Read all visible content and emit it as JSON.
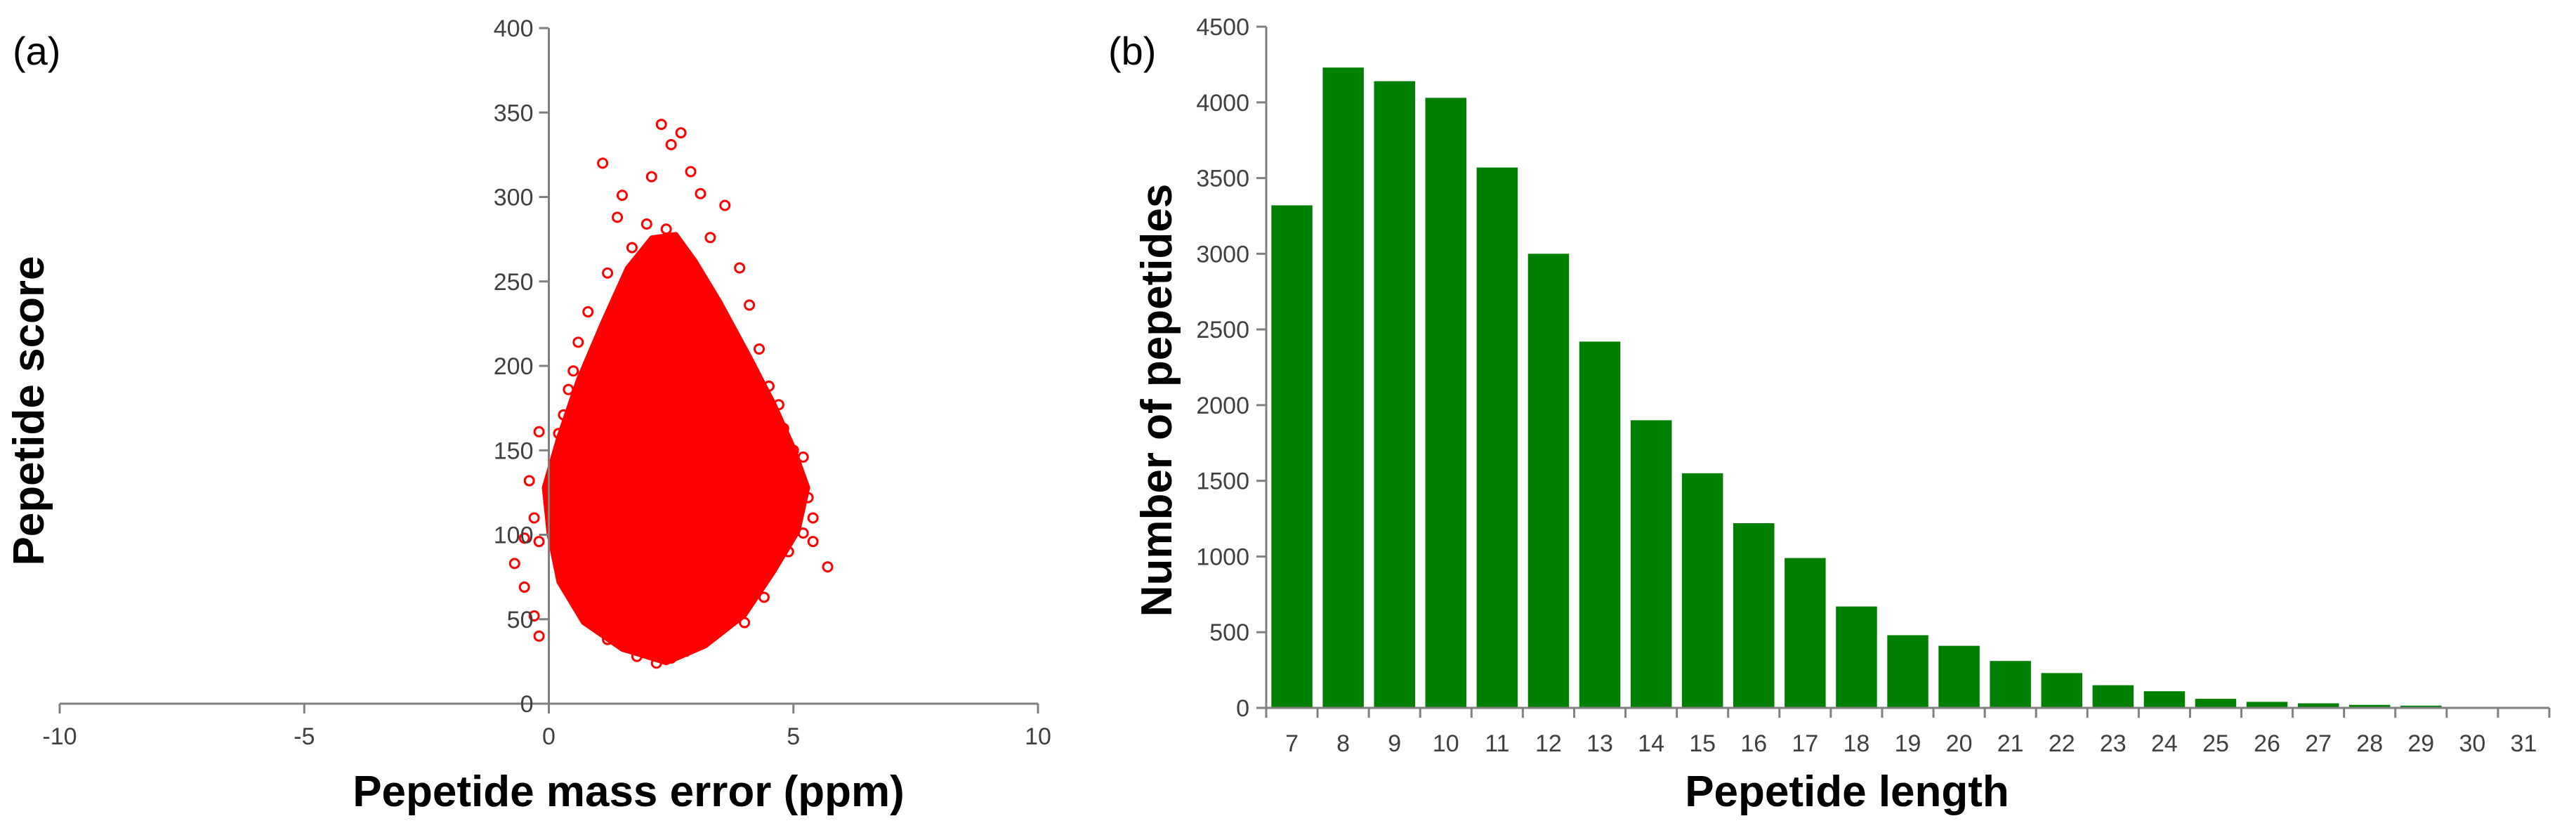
{
  "chart_data": [
    {
      "panel_label": "(a)",
      "type": "scatter",
      "xlabel": "Pepetide mass error (ppm)",
      "ylabel": "Pepetide score",
      "xlim": [
        -10,
        10
      ],
      "ylim": [
        0,
        400
      ],
      "xticks": [
        -10,
        -5,
        0,
        5,
        10
      ],
      "yticks": [
        0,
        50,
        100,
        150,
        200,
        250,
        300,
        350,
        400
      ],
      "marker": "open-circle",
      "color": "#ff0000",
      "grid": false,
      "legend": "none",
      "points": [
        {
          "x": 2.3,
          "y": 343
        },
        {
          "x": 2.7,
          "y": 338
        },
        {
          "x": 2.5,
          "y": 331
        },
        {
          "x": 1.1,
          "y": 320
        },
        {
          "x": 2.1,
          "y": 312
        },
        {
          "x": 2.9,
          "y": 315
        },
        {
          "x": 1.5,
          "y": 301
        },
        {
          "x": 3.1,
          "y": 302
        },
        {
          "x": 3.6,
          "y": 295
        },
        {
          "x": 1.4,
          "y": 288
        },
        {
          "x": 2.0,
          "y": 284
        },
        {
          "x": 2.4,
          "y": 281
        },
        {
          "x": 3.3,
          "y": 276
        },
        {
          "x": 1.7,
          "y": 270
        },
        {
          "x": 1.2,
          "y": 255
        },
        {
          "x": 3.9,
          "y": 258
        },
        {
          "x": 0.8,
          "y": 232
        },
        {
          "x": 4.1,
          "y": 236
        },
        {
          "x": 0.6,
          "y": 214
        },
        {
          "x": 4.3,
          "y": 210
        },
        {
          "x": 0.5,
          "y": 197
        },
        {
          "x": 0.4,
          "y": 186
        },
        {
          "x": 4.5,
          "y": 188
        },
        {
          "x": 4.7,
          "y": 177
        },
        {
          "x": 0.3,
          "y": 171
        },
        {
          "x": 0.2,
          "y": 160
        },
        {
          "x": 4.8,
          "y": 163
        },
        {
          "x": -0.2,
          "y": 161
        },
        {
          "x": 5.0,
          "y": 150
        },
        {
          "x": 5.2,
          "y": 146
        },
        {
          "x": 0.1,
          "y": 139
        },
        {
          "x": -0.4,
          "y": 132
        },
        {
          "x": 5.1,
          "y": 132
        },
        {
          "x": 0.0,
          "y": 119
        },
        {
          "x": 5.3,
          "y": 122
        },
        {
          "x": -0.3,
          "y": 110
        },
        {
          "x": 5.4,
          "y": 110
        },
        {
          "x": 5.2,
          "y": 101
        },
        {
          "x": -0.5,
          "y": 98
        },
        {
          "x": 5.4,
          "y": 96
        },
        {
          "x": -0.2,
          "y": 96
        },
        {
          "x": 4.9,
          "y": 90
        },
        {
          "x": -0.7,
          "y": 83
        },
        {
          "x": 5.7,
          "y": 81
        },
        {
          "x": 0.3,
          "y": 73
        },
        {
          "x": -0.5,
          "y": 69
        },
        {
          "x": 4.4,
          "y": 63
        },
        {
          "x": 0.6,
          "y": 57
        },
        {
          "x": -0.3,
          "y": 52
        },
        {
          "x": 4.0,
          "y": 48
        },
        {
          "x": 3.4,
          "y": 43
        },
        {
          "x": -0.2,
          "y": 40
        },
        {
          "x": 1.2,
          "y": 38
        },
        {
          "x": 2.8,
          "y": 31
        },
        {
          "x": 1.8,
          "y": 28
        },
        {
          "x": 2.2,
          "y": 24
        },
        {
          "x": 2.5,
          "y": 27
        }
      ]
    },
    {
      "panel_label": "(b)",
      "type": "bar",
      "xlabel": "Pepetide length",
      "ylabel": "Number of pepetides",
      "ylim": [
        0,
        4500
      ],
      "yticks": [
        0,
        500,
        1000,
        1500,
        2000,
        2500,
        3000,
        3500,
        4000,
        4500
      ],
      "color": "#008000",
      "grid": false,
      "legend": "none",
      "categories": [
        "7",
        "8",
        "9",
        "10",
        "11",
        "12",
        "13",
        "14",
        "15",
        "16",
        "17",
        "18",
        "19",
        "20",
        "21",
        "22",
        "23",
        "24",
        "25",
        "26",
        "27",
        "28",
        "29",
        "30",
        "31"
      ],
      "values": [
        3320,
        4230,
        4140,
        4030,
        3570,
        3000,
        2420,
        1900,
        1550,
        1220,
        990,
        670,
        480,
        410,
        310,
        230,
        150,
        110,
        60,
        40,
        30,
        20,
        15,
        3,
        2
      ]
    }
  ]
}
